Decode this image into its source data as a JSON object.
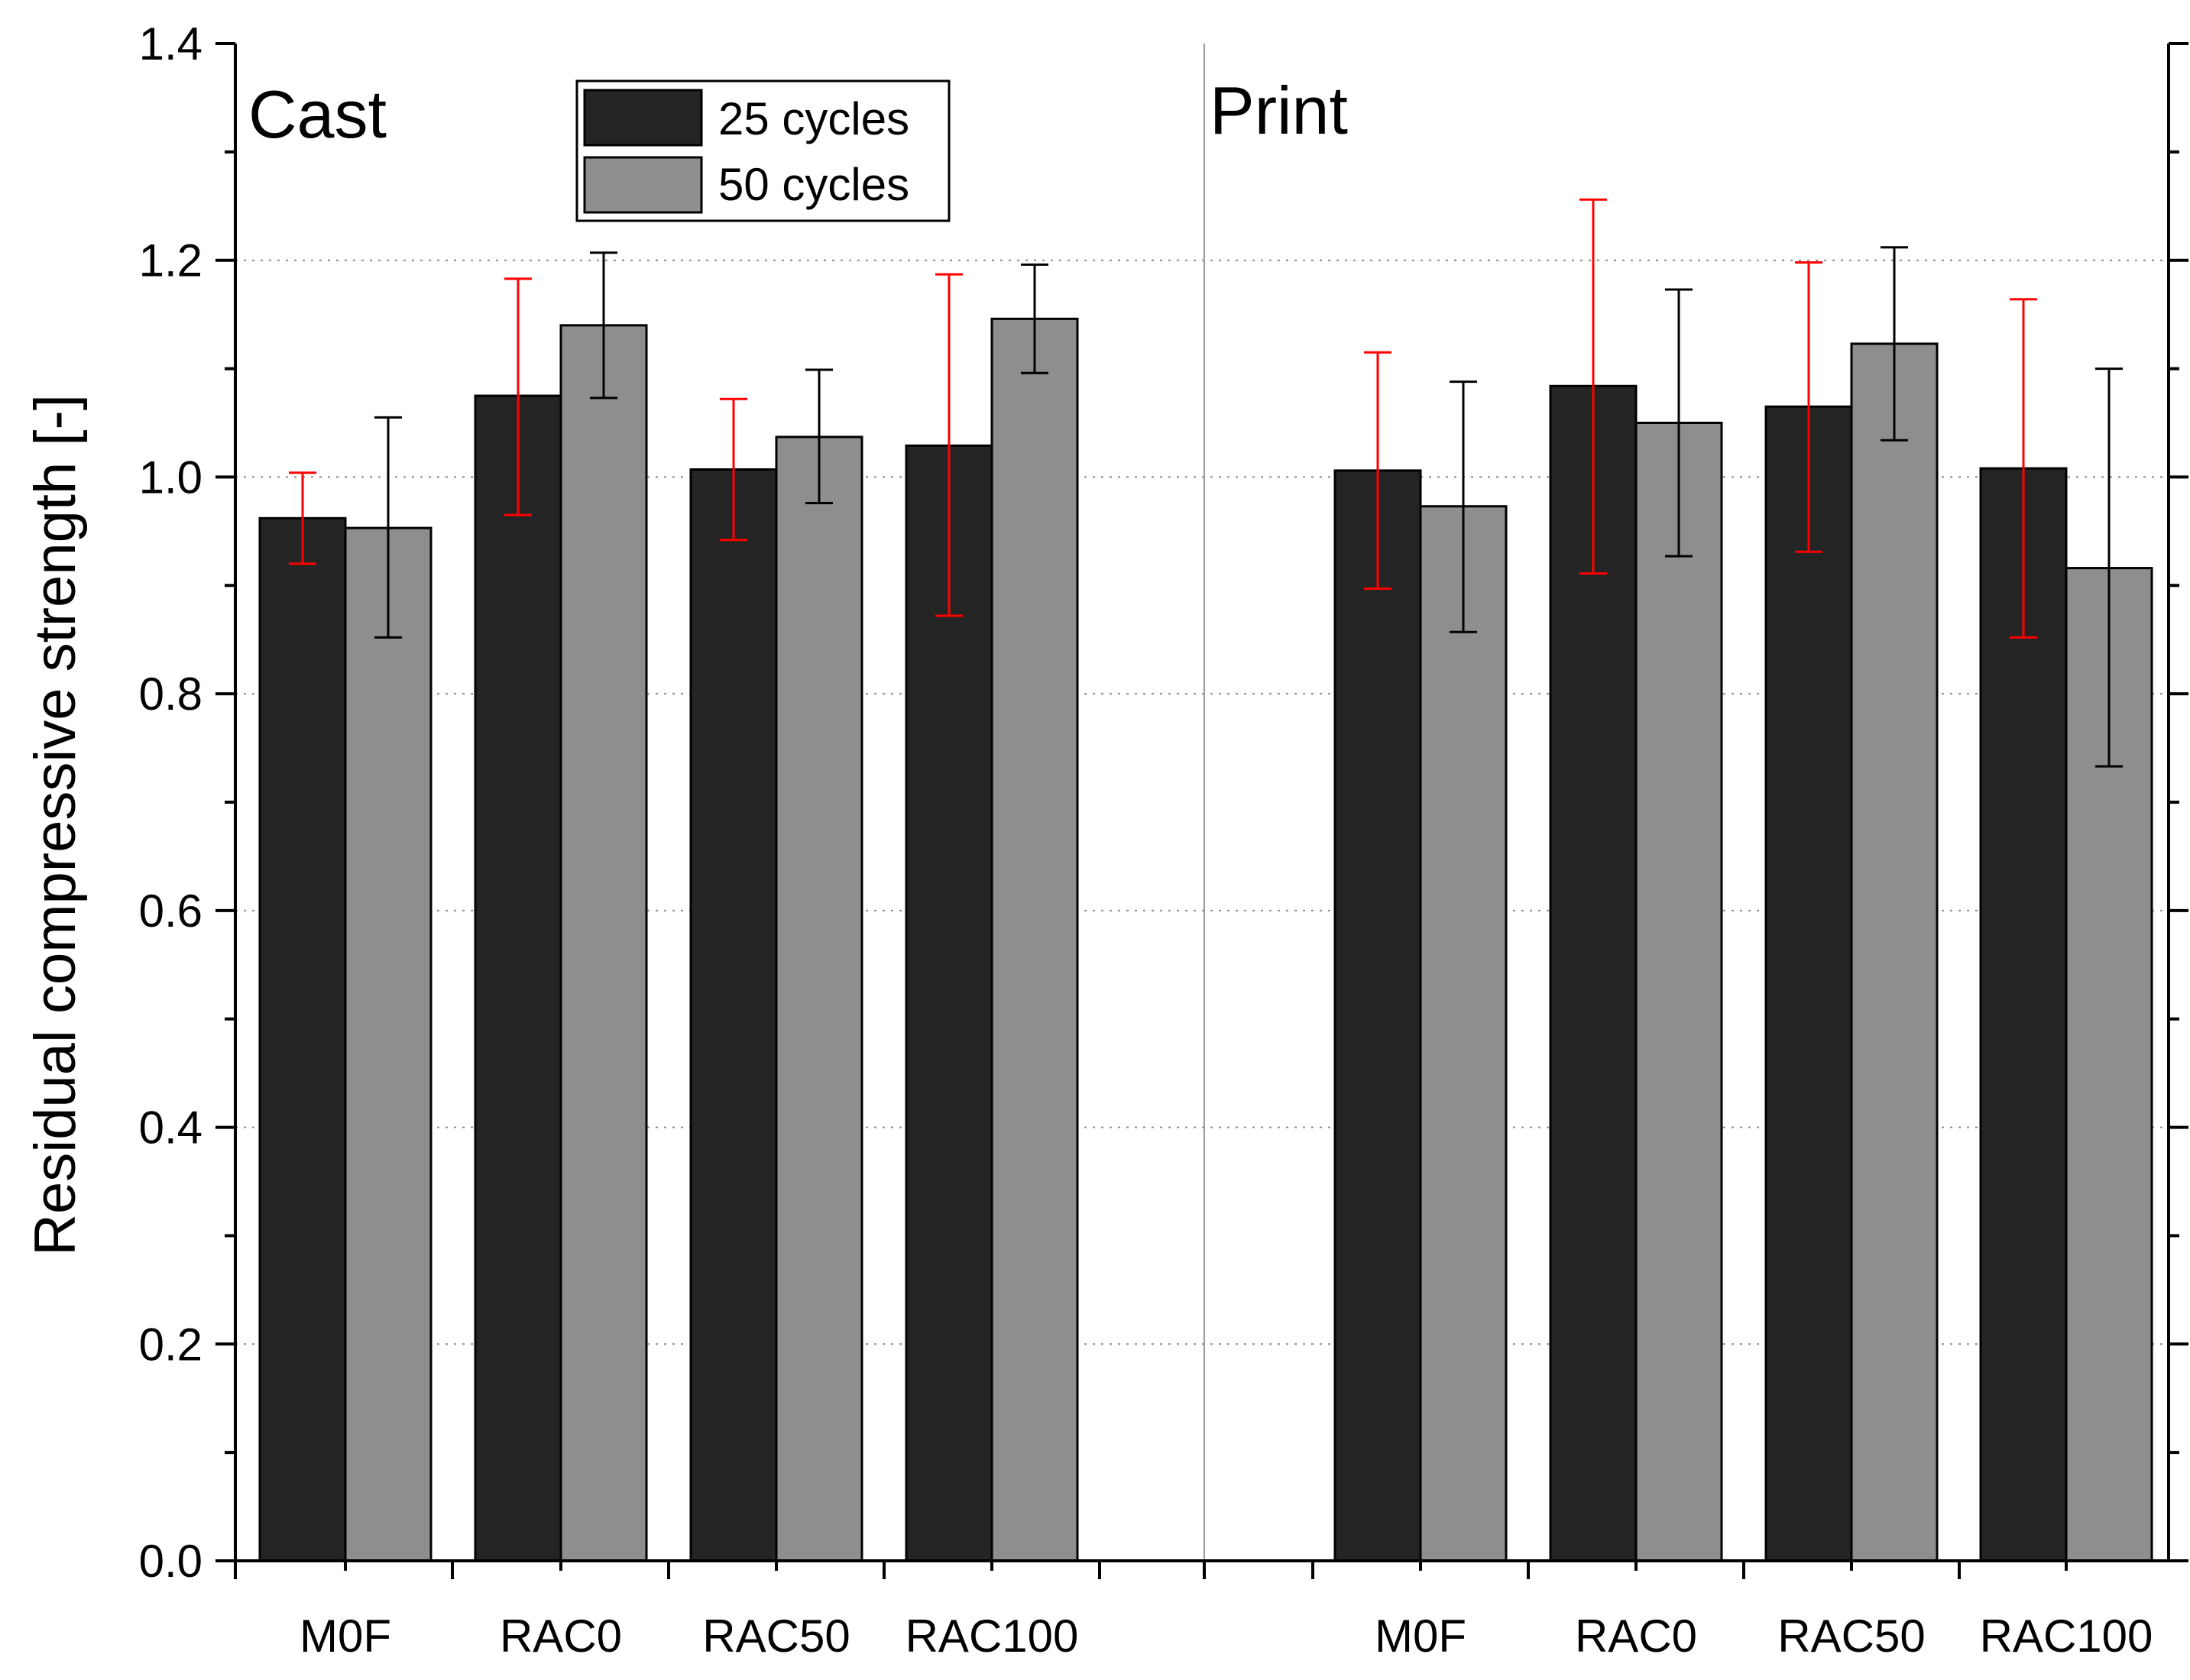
{
  "chart_data": {
    "type": "bar",
    "title": "",
    "xlabel": "",
    "ylabel": "Residual compressive strength [-]",
    "ylim": [
      0,
      1.4
    ],
    "yticks": [
      "0.0",
      "0.2",
      "0.4",
      "0.6",
      "0.8",
      "1.0",
      "1.2",
      "1.4"
    ],
    "grid": "horizontal dotted",
    "legend": {
      "position": "top-center",
      "entries": [
        {
          "label": "25 cycles",
          "color": "#242424"
        },
        {
          "label": "50 cycles",
          "color": "#8e8e8e"
        }
      ]
    },
    "errorbar_colors": {
      "25 cycles": "#ff0000",
      "50 cycles": "#000000"
    },
    "groups": [
      {
        "name": "Cast",
        "categories": [
          "M0F",
          "RAC0",
          "RAC50",
          "RAC100"
        ],
        "series": [
          {
            "name": "25 cycles",
            "values": [
              0.962,
              1.075,
              1.007,
              1.029
            ],
            "err_low": [
              0.92,
              0.965,
              0.942,
              0.872
            ],
            "err_high": [
              1.004,
              1.183,
              1.072,
              1.187
            ]
          },
          {
            "name": "50 cycles",
            "values": [
              0.953,
              1.14,
              1.037,
              1.146
            ],
            "err_low": [
              0.852,
              1.073,
              0.976,
              1.096
            ],
            "err_high": [
              1.055,
              1.207,
              1.099,
              1.196
            ]
          }
        ]
      },
      {
        "name": "Print",
        "categories": [
          "M0F",
          "RAC0",
          "RAC50",
          "RAC100"
        ],
        "series": [
          {
            "name": "25 cycles",
            "values": [
              1.006,
              1.084,
              1.065,
              1.008
            ],
            "err_low": [
              0.897,
              0.911,
              0.931,
              0.852
            ],
            "err_high": [
              1.115,
              1.256,
              1.198,
              1.164
            ]
          },
          {
            "name": "50 cycles",
            "values": [
              0.973,
              1.05,
              1.123,
              0.916
            ],
            "err_low": [
              0.857,
              0.927,
              1.034,
              0.733
            ],
            "err_high": [
              1.088,
              1.173,
              1.212,
              1.1
            ]
          }
        ]
      }
    ]
  }
}
